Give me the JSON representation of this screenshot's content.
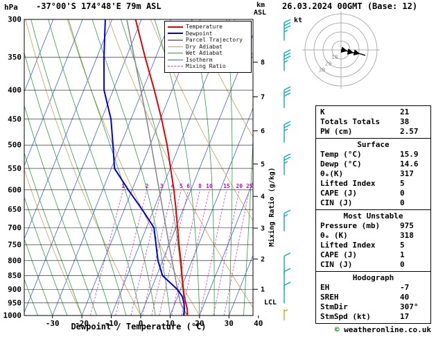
{
  "header": {
    "pressure_unit_label": "hPa",
    "station_title": "-37°00'S 174°48'E 79m ASL",
    "datetime_title": "26.03.2024 00GMT (Base: 12)",
    "altitude_axis_unit": "km",
    "altitude_axis_datum": "ASL",
    "copyright_symbol": "©",
    "copyright_text": "weatheronline.co.uk"
  },
  "axes": {
    "x_label": "Dewpoint / Temperature (°C)",
    "x_ticks": [
      -30,
      -20,
      -10,
      0,
      10,
      20,
      30,
      40
    ],
    "pressure_ticks": [
      300,
      350,
      400,
      450,
      500,
      550,
      600,
      650,
      700,
      750,
      800,
      850,
      900,
      950,
      1000
    ],
    "km_ticks": [
      8,
      7,
      6,
      5,
      4,
      3,
      2,
      1
    ],
    "km_tick_pressures": {
      "1": 899,
      "2": 795,
      "3": 701,
      "4": 616,
      "5": 540,
      "6": 472,
      "7": 411,
      "8": 357
    },
    "mixing_axis_label": "Mixing Ratio (g/kg)",
    "lcl_label": "LCL"
  },
  "legend": {
    "items": [
      {
        "label": "Temperature",
        "color": "#e00000",
        "width": 2,
        "dash": null
      },
      {
        "label": "Dewpoint",
        "color": "#0000cc",
        "width": 2,
        "dash": null
      },
      {
        "label": "Parcel Trajectory",
        "color": "#8a8a8a",
        "width": 2,
        "dash": null
      },
      {
        "label": "Dry Adiabat",
        "color": "#d29a5a",
        "width": 1,
        "dash": null
      },
      {
        "label": "Wet Adiabat",
        "color": "#2f9e44",
        "width": 1,
        "dash": null
      },
      {
        "label": "Isotherm",
        "color": "#3a64c8",
        "width": 1,
        "dash": null
      },
      {
        "label": "Mixing Ratio",
        "color": "#cc44cc",
        "width": 1,
        "dash": "3 2"
      }
    ]
  },
  "chart_data": {
    "type": "line",
    "title": "Skew-T log-P sounding -37°00'S 174°48'E 79m ASL 26.03.2024 00GMT",
    "x_axis": {
      "label": "Dewpoint / Temperature (°C)",
      "min": -40,
      "max": 40,
      "unit": "°C"
    },
    "y_axis": {
      "label": "hPa",
      "scale": "log",
      "min": 300,
      "max": 1000,
      "unit": "hPa"
    },
    "skew": 0.4,
    "isotherm_step": 10,
    "dry_adiabat_step": 20,
    "wet_adiabat_step": 5,
    "mixing_ratio_lines": [
      1,
      2,
      3,
      4,
      5,
      6,
      8,
      10,
      15,
      20,
      25
    ],
    "pressure_levels": [
      1000,
      975,
      950,
      925,
      900,
      850,
      800,
      750,
      700,
      650,
      600,
      550,
      500,
      450,
      400,
      350,
      300
    ],
    "series": [
      {
        "name": "Temperature",
        "color": "#e00000",
        "values": [
          15.9,
          15.0,
          13.6,
          12.2,
          11.0,
          8.6,
          6.2,
          3.4,
          0.6,
          -2.4,
          -5.8,
          -9.8,
          -14.2,
          -19.6,
          -26.0,
          -33.6,
          -42.0
        ]
      },
      {
        "name": "Dewpoint",
        "color": "#0000cc",
        "values": [
          14.6,
          14.0,
          13.0,
          11.5,
          9.0,
          2.0,
          -1.6,
          -4.4,
          -7.4,
          -13.9,
          -21.3,
          -28.9,
          -32.6,
          -36.8,
          -43.1,
          -47.6,
          -52.3
        ]
      },
      {
        "name": "Parcel Trajectory",
        "color": "#8a8a8a",
        "values": [
          15.9,
          13.7,
          11.8,
          10.4,
          9.0,
          6.2,
          3.2,
          0.0,
          -3.3,
          -6.9,
          -10.8,
          -15.0,
          -19.6,
          -24.7,
          -30.6,
          -37.3,
          -45.0
        ]
      }
    ],
    "winds": [
      {
        "p": 327,
        "kt": 35
      },
      {
        "p": 370,
        "kt": 35
      },
      {
        "p": 430,
        "kt": 30
      },
      {
        "p": 495,
        "kt": 25
      },
      {
        "p": 565,
        "kt": 25
      },
      {
        "p": 710,
        "kt": 15
      },
      {
        "p": 845,
        "kt": 10
      },
      {
        "p": 900,
        "kt": 10
      },
      {
        "p": 952,
        "kt": 10
      },
      {
        "p": 1000,
        "kt": 5,
        "color": "#c8b400",
        "dy": 7,
        "len": 16
      }
    ],
    "wind_color": "#00b4b4",
    "lcl_pressure": 952
  },
  "hodograph": {
    "unit_label": "kt",
    "rings": [
      10,
      20,
      30,
      40
    ],
    "ring_labels": [
      10,
      20,
      30
    ],
    "storm_dir": 307,
    "storm_speed_kt": 17,
    "trace": [
      [
        0,
        0
      ],
      [
        6,
        -1
      ],
      [
        13,
        -3
      ],
      [
        20,
        -4
      ],
      [
        27,
        -6
      ]
    ]
  },
  "stats": {
    "sections": [
      {
        "header": "",
        "rows": [
          {
            "label": "K",
            "value": "21"
          },
          {
            "label": "Totals Totals",
            "value": "38"
          },
          {
            "label": "PW (cm)",
            "value": "2.57"
          }
        ]
      },
      {
        "header": "Surface",
        "rows": [
          {
            "label": "Temp (°C)",
            "value": "15.9"
          },
          {
            "label": "Dewp (°C)",
            "value": "14.6"
          },
          {
            "label": "θₑ(K)",
            "value": "317"
          },
          {
            "label": "Lifted Index",
            "value": "5"
          },
          {
            "label": "CAPE (J)",
            "value": "0"
          },
          {
            "label": "CIN (J)",
            "value": "0"
          }
        ]
      },
      {
        "header": "Most Unstable",
        "rows": [
          {
            "label": "Pressure (mb)",
            "value": "975"
          },
          {
            "label": "θₑ (K)",
            "value": "318"
          },
          {
            "label": "Lifted Index",
            "value": "5"
          },
          {
            "label": "CAPE (J)",
            "value": "1"
          },
          {
            "label": "CIN (J)",
            "value": "0"
          }
        ]
      },
      {
        "header": "Hodograph",
        "rows": [
          {
            "label": "EH",
            "value": "-7"
          },
          {
            "label": "SREH",
            "value": "40"
          },
          {
            "label": "StmDir",
            "value": "307°"
          },
          {
            "label": "StmSpd (kt)",
            "value": "17"
          }
        ]
      }
    ]
  }
}
